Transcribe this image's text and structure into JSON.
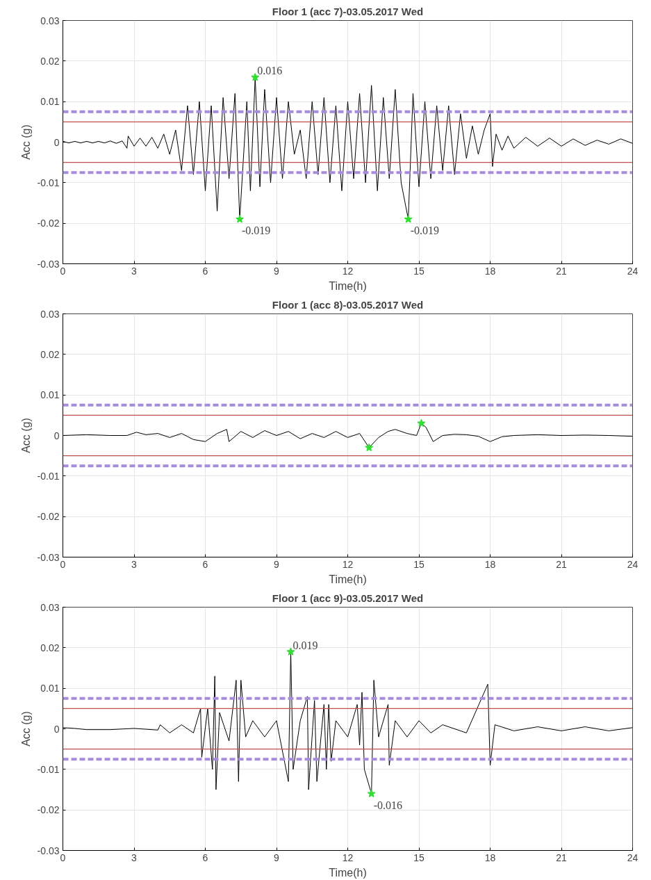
{
  "chart_data": [
    {
      "type": "line",
      "title": "Floor 1 (acc 7)-03.05.2017 Wed",
      "xlabel": "Time(h)",
      "ylabel": "Acc (g)",
      "xlim": [
        0,
        24
      ],
      "xticks": [
        0,
        3,
        6,
        9,
        12,
        15,
        18,
        21,
        24
      ],
      "ylim": [
        -0.03,
        0.03
      ],
      "yticks": [
        -0.03,
        -0.02,
        -0.01,
        0,
        0.01,
        0.02,
        0.03
      ],
      "grid": true,
      "series": [
        {
          "color": "#000000",
          "marker": "none",
          "x": [
            0,
            0.25,
            0.5,
            0.75,
            1,
            1.25,
            1.5,
            1.75,
            2,
            2.25,
            2.5,
            2.7,
            2.75,
            3,
            3.25,
            3.5,
            3.75,
            4,
            4.25,
            4.5,
            4.75,
            5,
            5.25,
            5.5,
            5.75,
            6,
            6.25,
            6.5,
            6.75,
            7,
            7.25,
            7.45,
            7.75,
            7.9,
            8.1,
            8.3,
            8.5,
            8.75,
            9,
            9.25,
            9.5,
            9.75,
            10,
            10.25,
            10.5,
            10.75,
            11,
            11.25,
            11.5,
            11.75,
            12,
            12.25,
            12.5,
            12.75,
            13,
            13.25,
            13.5,
            13.75,
            14,
            14.25,
            14.55,
            14.75,
            15,
            15.25,
            15.5,
            15.75,
            16,
            16.25,
            16.5,
            16.75,
            17,
            17.25,
            17.5,
            17.75,
            18,
            18.1,
            18.25,
            18.5,
            18.75,
            19,
            19.5,
            20,
            20.5,
            21,
            21.5,
            22,
            22.5,
            23,
            23.5,
            24
          ],
          "values": [
            0.0002,
            -0.0002,
            0.0002,
            -0.0002,
            0.0002,
            -0.0002,
            0.0002,
            -0.0002,
            0.0003,
            -0.0003,
            0.0003,
            -0.0015,
            0.0015,
            -0.001,
            0.001,
            -0.001,
            0.0012,
            -0.0015,
            0.002,
            -0.003,
            0.003,
            -0.007,
            0.009,
            -0.008,
            0.01,
            -0.012,
            0.009,
            -0.017,
            0.011,
            -0.009,
            0.012,
            -0.019,
            0.01,
            -0.012,
            0.016,
            -0.011,
            0.013,
            -0.01,
            0.011,
            -0.009,
            0.01,
            -0.003,
            0.003,
            -0.009,
            0.01,
            -0.008,
            0.011,
            -0.01,
            0.009,
            -0.012,
            0.01,
            -0.009,
            0.012,
            -0.01,
            0.014,
            -0.012,
            0.011,
            -0.009,
            0.013,
            -0.01,
            -0.019,
            0.012,
            -0.011,
            0.01,
            -0.009,
            0.009,
            -0.007,
            0.009,
            -0.008,
            0.007,
            -0.004,
            0.004,
            -0.003,
            0.003,
            0.007,
            -0.006,
            0.002,
            -0.002,
            0.0015,
            -0.0015,
            0.0012,
            -0.001,
            0.001,
            -0.001,
            0.0008,
            -0.0008,
            0.0005,
            -0.0005,
            0.0008,
            -0.0003
          ]
        },
        {
          "type": "scatter",
          "color": "#33dd33",
          "marker": "star",
          "x": [
            8.1,
            7.45,
            14.55
          ],
          "values": [
            0.016,
            -0.019,
            -0.019
          ]
        }
      ],
      "ref_lines": [
        {
          "axis": "y",
          "value": 0.005,
          "color": "#c0504d",
          "line_style": "solid"
        },
        {
          "axis": "y",
          "value": -0.005,
          "color": "#c0504d",
          "line_style": "solid"
        },
        {
          "axis": "y",
          "value": 0.0075,
          "color": "#a78bdc",
          "line_style": "dashed"
        },
        {
          "axis": "y",
          "value": -0.0075,
          "color": "#a78bdc",
          "line_style": "dashed"
        }
      ],
      "annotations": [
        {
          "text": "0.016",
          "x": 8.1,
          "y": 0.016
        },
        {
          "text": "-0.019",
          "x": 7.45,
          "y": -0.019
        },
        {
          "text": "-0.019",
          "x": 14.55,
          "y": -0.019
        }
      ]
    },
    {
      "type": "line",
      "title": "Floor 1 (acc 8)-03.05.2017 Wed",
      "xlabel": "Time(h)",
      "ylabel": "Acc (g)",
      "xlim": [
        0,
        24
      ],
      "xticks": [
        0,
        3,
        6,
        9,
        12,
        15,
        18,
        21,
        24
      ],
      "ylim": [
        -0.03,
        0.03
      ],
      "yticks": [
        -0.03,
        -0.02,
        -0.01,
        0,
        0.01,
        0.02,
        0.03
      ],
      "grid": true,
      "series": [
        {
          "color": "#000000",
          "marker": "none",
          "x": [
            0,
            1,
            2,
            2.7,
            3.1,
            3.5,
            4,
            4.5,
            5,
            5.5,
            6,
            6.5,
            6.9,
            7,
            7.5,
            8,
            8.5,
            9,
            9.5,
            10,
            10.5,
            11,
            11.5,
            12,
            12.5,
            12.9,
            13.3,
            13.7,
            14,
            14.5,
            14.9,
            15.1,
            15.3,
            15.6,
            16,
            16.5,
            17,
            17.5,
            18,
            18.5,
            19,
            20,
            21,
            22,
            23,
            24
          ],
          "values": [
            0,
            0.0002,
            0,
            0,
            0.0008,
            0.0002,
            0.0005,
            -0.0005,
            0.0005,
            -0.001,
            -0.0015,
            0.0005,
            0.0015,
            -0.0015,
            0.001,
            -0.0005,
            0.0012,
            0,
            0.001,
            -0.0008,
            0.0005,
            -0.0005,
            0.001,
            -0.0005,
            0.0005,
            -0.003,
            -0.0005,
            0.001,
            0.0015,
            0.0005,
            0,
            0.003,
            0.002,
            -0.0015,
            0,
            0.0003,
            0.0002,
            -0.0002,
            -0.0015,
            -0.0003,
            0,
            0.0002,
            0,
            0.0001,
            0,
            -0.0002
          ]
        },
        {
          "type": "scatter",
          "color": "#33dd33",
          "marker": "star",
          "x": [
            12.9,
            15.1
          ],
          "values": [
            -0.003,
            0.003
          ]
        }
      ],
      "ref_lines": [
        {
          "axis": "y",
          "value": 0.005,
          "color": "#c0504d",
          "line_style": "solid"
        },
        {
          "axis": "y",
          "value": -0.005,
          "color": "#c0504d",
          "line_style": "solid"
        },
        {
          "axis": "y",
          "value": 0.0075,
          "color": "#a78bdc",
          "line_style": "dashed"
        },
        {
          "axis": "y",
          "value": -0.0075,
          "color": "#a78bdc",
          "line_style": "dashed"
        }
      ]
    },
    {
      "type": "line",
      "title": "Floor 1 (acc 9)-03.05.2017 Wed",
      "xlabel": "Time(h)",
      "ylabel": "Acc (g)",
      "xlim": [
        0,
        24
      ],
      "xticks": [
        0,
        3,
        6,
        9,
        12,
        15,
        18,
        21,
        24
      ],
      "ylim": [
        -0.03,
        0.03
      ],
      "yticks": [
        -0.03,
        -0.02,
        -0.01,
        0,
        0.01,
        0.02,
        0.03
      ],
      "grid": true,
      "series": [
        {
          "color": "#000000",
          "marker": "none",
          "x": [
            0,
            0.5,
            1,
            2,
            3,
            4,
            4.1,
            4.5,
            5,
            5.5,
            5.8,
            5.85,
            6.1,
            6.3,
            6.4,
            6.45,
            6.6,
            7,
            7.3,
            7.4,
            7.5,
            7.7,
            8,
            8.5,
            9,
            9.5,
            9.6,
            9.7,
            10,
            10.3,
            10.35,
            10.6,
            10.7,
            11,
            11.1,
            11.2,
            11.3,
            11.5,
            12,
            12.4,
            12.5,
            12.6,
            12.7,
            13.0,
            13.1,
            13.3,
            13.7,
            13.75,
            14,
            14.5,
            15,
            15.5,
            16,
            17,
            17.9,
            18,
            18.2,
            19,
            20,
            21,
            22,
            23,
            24
          ],
          "values": [
            0.0003,
            0.0001,
            -0.0002,
            -0.0002,
            0.0001,
            -0.0003,
            0.001,
            -0.001,
            0.001,
            -0.001,
            0.005,
            -0.007,
            0.005,
            -0.01,
            0.013,
            -0.015,
            0.004,
            -0.003,
            0.012,
            -0.013,
            0.012,
            -0.002,
            0.002,
            -0.002,
            0.002,
            -0.013,
            0.019,
            -0.01,
            0.002,
            0.008,
            -0.015,
            0.007,
            -0.013,
            0.006,
            -0.01,
            0.006,
            -0.008,
            0.002,
            -0.002,
            0.006,
            -0.004,
            0.009,
            -0.01,
            -0.016,
            0.012,
            -0.002,
            0.006,
            -0.009,
            0.002,
            -0.002,
            0.002,
            -0.001,
            0.001,
            -0.001,
            0.011,
            -0.009,
            0.001,
            -0.0005,
            0.0005,
            -0.0005,
            0.0005,
            -0.0005,
            0.0003
          ]
        },
        {
          "type": "scatter",
          "color": "#33dd33",
          "marker": "star",
          "x": [
            9.6,
            13.0
          ],
          "values": [
            0.019,
            -0.016
          ]
        }
      ],
      "ref_lines": [
        {
          "axis": "y",
          "value": 0.005,
          "color": "#c0504d",
          "line_style": "solid"
        },
        {
          "axis": "y",
          "value": -0.005,
          "color": "#c0504d",
          "line_style": "solid"
        },
        {
          "axis": "y",
          "value": 0.0075,
          "color": "#a78bdc",
          "line_style": "dashed"
        },
        {
          "axis": "y",
          "value": -0.0075,
          "color": "#a78bdc",
          "line_style": "dashed"
        }
      ],
      "annotations": [
        {
          "text": "0.019",
          "x": 9.6,
          "y": 0.019
        },
        {
          "text": "-0.016",
          "x": 13.0,
          "y": -0.016
        }
      ]
    }
  ]
}
